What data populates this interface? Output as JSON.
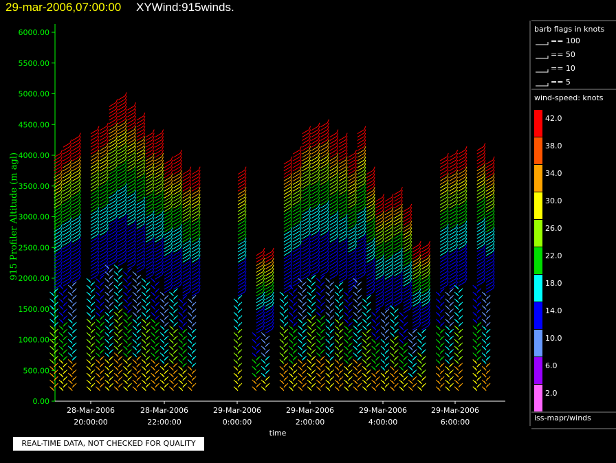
{
  "header": {
    "date_title": "29-mar-2006,07:00:00",
    "plot_title": "XYWind:915winds."
  },
  "notice": "REAL-TIME DATA, NOT CHECKED FOR QUALITY",
  "legend": {
    "barb_title": "barb flags in knots",
    "barb_items": [
      "== 100",
      "== 50",
      "== 10",
      "== 5"
    ],
    "speed_title": "wind-speed: knots",
    "speed_levels": [
      {
        "label": "42.0",
        "color": "#ff0000"
      },
      {
        "label": "38.0",
        "color": "#ff5500"
      },
      {
        "label": "34.0",
        "color": "#ffa500"
      },
      {
        "label": "30.0",
        "color": "#ffff00"
      },
      {
        "label": "26.0",
        "color": "#99ff00"
      },
      {
        "label": "22.0",
        "color": "#00dd00"
      },
      {
        "label": "18.0",
        "color": "#00ffff"
      },
      {
        "label": "14.0",
        "color": "#0000ff"
      },
      {
        "label": "10.0",
        "color": "#6699ff"
      },
      {
        "label": "6.0",
        "color": "#9900ff"
      },
      {
        "label": "2.0",
        "color": "#ff66ff"
      }
    ],
    "source": "iss-mapr/winds"
  },
  "chart_data": {
    "type": "scatter",
    "ylabel": "915 Profiler Altitude (m agl)",
    "xlabel": "time",
    "ylim": [
      0,
      6200
    ],
    "yticks": [
      "0.00",
      "500.00",
      "1000.00",
      "1500.00",
      "2000.00",
      "2500.00",
      "3000.00",
      "3500.00",
      "4000.00",
      "4500.00",
      "5000.00",
      "5500.00",
      "6000.00"
    ],
    "xticks": [
      {
        "date": "28-Mar-2006",
        "time": "20:00:00"
      },
      {
        "date": "28-Mar-2006",
        "time": "22:00:00"
      },
      {
        "date": "29-Mar-2006",
        "time": "0:00:00"
      },
      {
        "date": "29-Mar-2006",
        "time": "2:00:00"
      },
      {
        "date": "29-Mar-2006",
        "time": "4:00:00"
      },
      {
        "date": "29-Mar-2006",
        "time": "6:00:00"
      }
    ],
    "axis_color": "#00ff00",
    "series_description": "wind barb profiles at each observation time; barb color encodes wind speed (knots)",
    "profiles": [
      {
        "time": "19:00",
        "top": 4000
      },
      {
        "time": "19:15",
        "top": 4150
      },
      {
        "time": "19:30",
        "top": 4250
      },
      {
        "time": "20:00",
        "top": 4350
      },
      {
        "time": "20:15",
        "top": 4450
      },
      {
        "time": "20:30",
        "top": 4800
      },
      {
        "time": "20:45",
        "top": 4900
      },
      {
        "time": "21:00",
        "top": 4750
      },
      {
        "time": "21:15",
        "top": 4600
      },
      {
        "time": "21:30",
        "top": 4300
      },
      {
        "time": "21:45",
        "top": 4300
      },
      {
        "time": "22:00",
        "top": 3900
      },
      {
        "time": "22:15",
        "top": 4000
      },
      {
        "time": "22:30",
        "top": 3700
      },
      {
        "time": "22:45",
        "top": 3700
      },
      {
        "time": "0:00",
        "top": 3700
      },
      {
        "time": "0:30",
        "top": 2400
      },
      {
        "time": "0:45",
        "top": 2400
      },
      {
        "time": "1:15",
        "top": 3900
      },
      {
        "time": "1:30",
        "top": 4050
      },
      {
        "time": "1:45",
        "top": 4400
      },
      {
        "time": "2:00",
        "top": 4450
      },
      {
        "time": "2:15",
        "top": 4500
      },
      {
        "time": "2:30",
        "top": 4300
      },
      {
        "time": "2:45",
        "top": 4250
      },
      {
        "time": "3:00",
        "top": 4000
      },
      {
        "time": "3:15",
        "top": 4400
      },
      {
        "time": "3:30",
        "top": 3700
      },
      {
        "time": "3:45",
        "top": 3250
      },
      {
        "time": "4:00",
        "top": 3300
      },
      {
        "time": "4:15",
        "top": 3400
      },
      {
        "time": "4:30",
        "top": 3100
      },
      {
        "time": "4:45",
        "top": 2500
      },
      {
        "time": "5:00",
        "top": 2500
      },
      {
        "time": "5:30",
        "top": 3950
      },
      {
        "time": "5:45",
        "top": 4000
      },
      {
        "time": "6:00",
        "top": 4050
      },
      {
        "time": "6:30",
        "top": 4100
      },
      {
        "time": "6:45",
        "top": 3900
      }
    ]
  }
}
